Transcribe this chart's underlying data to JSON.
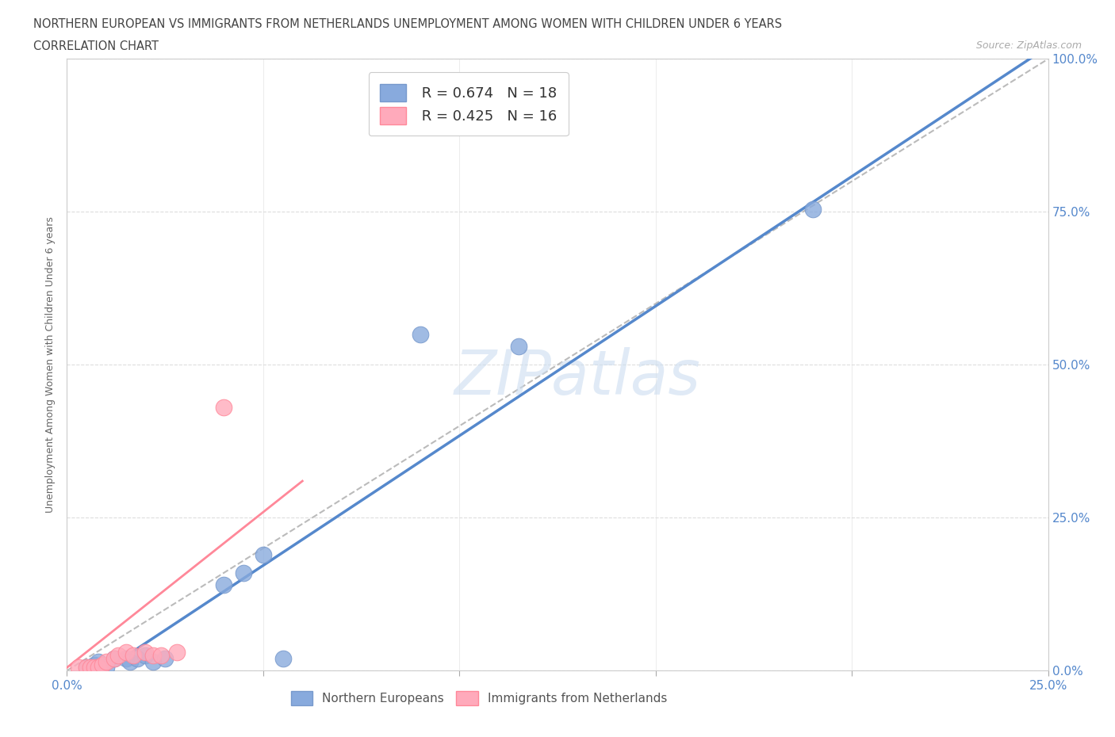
{
  "title_line1": "NORTHERN EUROPEAN VS IMMIGRANTS FROM NETHERLANDS UNEMPLOYMENT AMONG WOMEN WITH CHILDREN UNDER 6 YEARS",
  "title_line2": "CORRELATION CHART",
  "source": "Source: ZipAtlas.com",
  "ylabel": "Unemployment Among Women with Children Under 6 years",
  "xlim": [
    0.0,
    0.25
  ],
  "ylim": [
    0.0,
    1.0
  ],
  "xtick_vals": [
    0.0,
    0.05,
    0.1,
    0.15,
    0.2,
    0.25
  ],
  "xtick_labels": [
    "0.0%",
    "",
    "",
    "",
    "",
    "25.0%"
  ],
  "ytick_vals": [
    0.0,
    0.25,
    0.5,
    0.75,
    1.0
  ],
  "ytick_labels": [
    "0.0%",
    "25.0%",
    "50.0%",
    "75.0%",
    "100.0%"
  ],
  "blue_R": "R = 0.674",
  "blue_N": "N = 18",
  "pink_R": "R = 0.425",
  "pink_N": "N = 16",
  "watermark": "ZIPatlas",
  "blue_color": "#88AADD",
  "pink_color": "#FFAABB",
  "blue_scatter": [
    [
      0.005,
      0.005
    ],
    [
      0.007,
      0.01
    ],
    [
      0.008,
      0.015
    ],
    [
      0.01,
      0.005
    ],
    [
      0.012,
      0.02
    ],
    [
      0.015,
      0.02
    ],
    [
      0.016,
      0.015
    ],
    [
      0.018,
      0.02
    ],
    [
      0.02,
      0.025
    ],
    [
      0.022,
      0.015
    ],
    [
      0.025,
      0.02
    ],
    [
      0.04,
      0.14
    ],
    [
      0.045,
      0.16
    ],
    [
      0.05,
      0.19
    ],
    [
      0.055,
      0.02
    ],
    [
      0.09,
      0.55
    ],
    [
      0.115,
      0.53
    ],
    [
      0.19,
      0.755
    ]
  ],
  "pink_scatter": [
    [
      0.003,
      0.005
    ],
    [
      0.005,
      0.005
    ],
    [
      0.006,
      0.005
    ],
    [
      0.007,
      0.005
    ],
    [
      0.008,
      0.005
    ],
    [
      0.009,
      0.01
    ],
    [
      0.01,
      0.015
    ],
    [
      0.012,
      0.02
    ],
    [
      0.013,
      0.025
    ],
    [
      0.015,
      0.03
    ],
    [
      0.017,
      0.025
    ],
    [
      0.02,
      0.03
    ],
    [
      0.022,
      0.025
    ],
    [
      0.024,
      0.025
    ],
    [
      0.028,
      0.03
    ],
    [
      0.04,
      0.43
    ]
  ],
  "blue_line": [
    [
      0.0,
      -0.04
    ],
    [
      0.25,
      1.02
    ]
  ],
  "pink_line": [
    [
      0.0,
      0.005
    ],
    [
      0.06,
      0.31
    ]
  ],
  "grey_line": [
    [
      0.0,
      0.0
    ],
    [
      0.25,
      1.0
    ]
  ],
  "title_fontsize": 10.5,
  "tick_fontsize": 11,
  "ylabel_fontsize": 9,
  "legend_fontsize": 13,
  "source_fontsize": 9
}
